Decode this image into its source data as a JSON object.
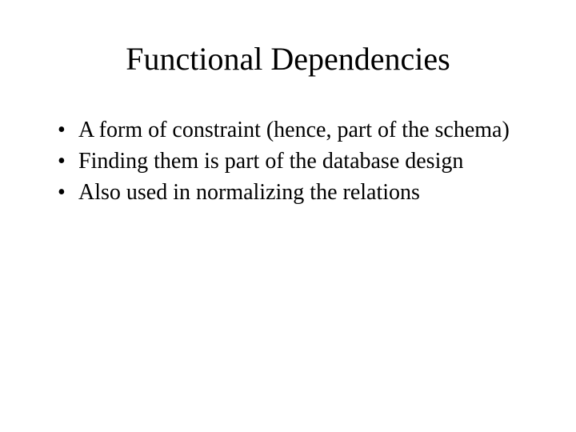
{
  "slide": {
    "title": "Functional Dependencies",
    "bullets": [
      "A form of constraint (hence, part of the schema)",
      "Finding them is part of the database design",
      "Also used in normalizing the relations"
    ],
    "title_fontsize": 40,
    "body_fontsize": 28,
    "font_family": "Times New Roman",
    "text_color": "#000000",
    "background_color": "#ffffff"
  }
}
